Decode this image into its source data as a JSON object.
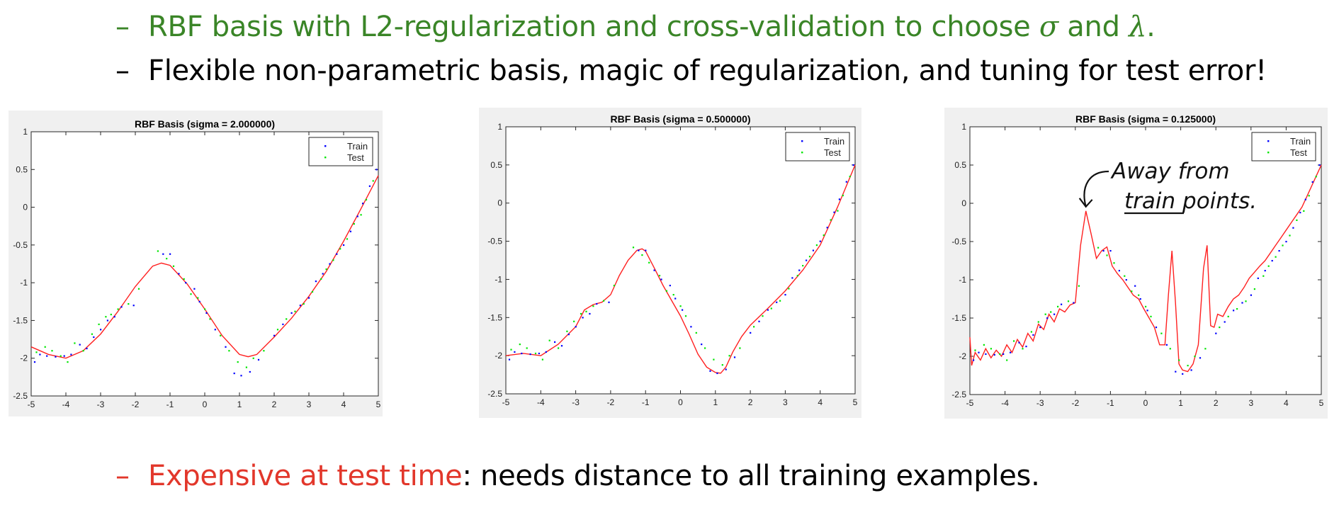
{
  "bullets": {
    "first": {
      "prefix": "RBF basis with L2-regularization and cross-validation to choose ",
      "sigma": "σ",
      "and": " and ",
      "lambda": "λ",
      "suffix": "."
    },
    "second": {
      "text": "Flexible non-parametric basis, magic of regularization, and tuning for test error!"
    },
    "third": {
      "highlight": "Expensive at test time",
      "rest": ": needs distance to all training examples."
    },
    "dash": "–"
  },
  "annotation": {
    "line1": "Away from",
    "line2_word": "train",
    "line2_rest": " points."
  },
  "colors": {
    "train": "#0000ff",
    "test": "#00e600",
    "fit": "#ff2020",
    "green_text": "#3a8527",
    "red_text": "#e2372b"
  },
  "chart_data": [
    {
      "type": "scatter",
      "title": "RBF Basis (sigma = 2.000000)",
      "xlim": [
        -5,
        5
      ],
      "ylim": [
        -2.5,
        1
      ],
      "xticks": [
        -5,
        -4,
        -3,
        -2,
        -1,
        0,
        1,
        2,
        3,
        4,
        5
      ],
      "yticks": [
        -2.5,
        -2,
        -1.5,
        -1,
        -0.5,
        0,
        0.5,
        1
      ],
      "legend": {
        "position": "top-right",
        "entries": [
          "Train",
          "Test"
        ]
      },
      "series": [
        {
          "name": "Train",
          "marker": "dot",
          "x": [
            -4.9,
            -4.75,
            -4.55,
            -4.3,
            -4.05,
            -3.85,
            -3.6,
            -3.4,
            -3.2,
            -3.0,
            -2.8,
            -2.6,
            -2.4,
            -2.05,
            -1.2,
            -1.0,
            -0.75,
            -0.55,
            -0.3,
            -0.15,
            0.05,
            0.3,
            0.6,
            0.85,
            1.05,
            1.3,
            1.55,
            2.0,
            2.25,
            2.5,
            2.75,
            3.0,
            3.2,
            3.4,
            3.6,
            3.8,
            4.0,
            4.2,
            4.4,
            4.55,
            4.75,
            4.95
          ],
          "y": [
            -2.05,
            -1.95,
            -1.97,
            -1.98,
            -1.97,
            -1.95,
            -1.82,
            -1.87,
            -1.72,
            -1.62,
            -1.5,
            -1.45,
            -1.32,
            -1.3,
            -0.62,
            -0.62,
            -0.88,
            -1.0,
            -1.08,
            -1.25,
            -1.4,
            -1.62,
            -1.85,
            -2.2,
            -2.23,
            -2.18,
            -2.02,
            -1.7,
            -1.55,
            -1.4,
            -1.3,
            -1.2,
            -0.98,
            -0.88,
            -0.75,
            -0.62,
            -0.5,
            -0.32,
            -0.12,
            0.05,
            0.28,
            0.5
          ]
        },
        {
          "name": "Test",
          "marker": "dot",
          "x": [
            -4.85,
            -4.6,
            -4.4,
            -4.15,
            -3.95,
            -3.75,
            -3.5,
            -3.25,
            -3.05,
            -2.85,
            -2.7,
            -2.5,
            -2.2,
            -1.9,
            -1.35,
            -1.1,
            -0.9,
            -0.6,
            -0.4,
            -0.2,
            0.0,
            0.15,
            0.45,
            0.7,
            0.95,
            1.2,
            1.4,
            1.7,
            2.1,
            2.35,
            2.6,
            2.85,
            3.1,
            3.35,
            3.5,
            3.7,
            3.9,
            4.1,
            4.3,
            4.5,
            4.65,
            4.85
          ],
          "y": [
            -1.92,
            -1.85,
            -1.9,
            -1.97,
            -2.05,
            -1.8,
            -1.9,
            -1.68,
            -1.55,
            -1.45,
            -1.42,
            -1.35,
            -1.28,
            -1.08,
            -0.58,
            -0.68,
            -0.78,
            -0.95,
            -1.15,
            -1.2,
            -1.35,
            -1.48,
            -1.7,
            -1.9,
            -2.05,
            -2.12,
            -2.0,
            -1.9,
            -1.62,
            -1.48,
            -1.38,
            -1.28,
            -1.12,
            -0.95,
            -0.82,
            -0.7,
            -0.55,
            -0.42,
            -0.22,
            -0.1,
            0.1,
            0.35
          ]
        }
      ],
      "fit": {
        "name": "RBF fit",
        "x": [
          -5,
          -4.5,
          -4,
          -3.5,
          -3,
          -2.5,
          -2,
          -1.5,
          -1.25,
          -1,
          -0.5,
          0,
          0.5,
          1,
          1.25,
          1.5,
          2,
          2.5,
          3,
          3.5,
          4,
          4.5,
          5
        ],
        "y": [
          -1.85,
          -1.95,
          -2.0,
          -1.9,
          -1.68,
          -1.38,
          -1.05,
          -0.78,
          -0.74,
          -0.77,
          -1.02,
          -1.35,
          -1.7,
          -1.95,
          -1.98,
          -1.95,
          -1.72,
          -1.47,
          -1.18,
          -0.85,
          -0.45,
          -0.02,
          0.42
        ]
      }
    },
    {
      "type": "scatter",
      "title": "RBF Basis (sigma = 0.500000)",
      "xlim": [
        -5,
        5
      ],
      "ylim": [
        -2.5,
        1
      ],
      "xticks": [
        -5,
        -4,
        -3,
        -2,
        -1,
        0,
        1,
        2,
        3,
        4,
        5
      ],
      "yticks": [
        -2.5,
        -2,
        -1.5,
        -1,
        -0.5,
        0,
        0.5,
        1
      ],
      "legend": {
        "position": "top-right",
        "entries": [
          "Train",
          "Test"
        ]
      },
      "series": [
        {
          "name": "Train",
          "marker": "dot",
          "x": [
            -4.9,
            -4.75,
            -4.55,
            -4.3,
            -4.05,
            -3.85,
            -3.6,
            -3.4,
            -3.2,
            -3.0,
            -2.8,
            -2.6,
            -2.4,
            -2.05,
            -1.2,
            -1.0,
            -0.75,
            -0.55,
            -0.3,
            -0.15,
            0.05,
            0.3,
            0.6,
            0.85,
            1.05,
            1.3,
            1.55,
            2.0,
            2.25,
            2.5,
            2.75,
            3.0,
            3.2,
            3.4,
            3.6,
            3.8,
            4.0,
            4.2,
            4.4,
            4.55,
            4.75,
            4.95
          ],
          "y": [
            -2.05,
            -1.95,
            -1.97,
            -1.98,
            -1.97,
            -1.95,
            -1.82,
            -1.87,
            -1.72,
            -1.62,
            -1.5,
            -1.45,
            -1.32,
            -1.3,
            -0.62,
            -0.62,
            -0.88,
            -1.0,
            -1.08,
            -1.25,
            -1.4,
            -1.62,
            -1.85,
            -2.2,
            -2.23,
            -2.18,
            -2.02,
            -1.7,
            -1.55,
            -1.4,
            -1.3,
            -1.2,
            -0.98,
            -0.88,
            -0.75,
            -0.62,
            -0.5,
            -0.32,
            -0.12,
            0.05,
            0.28,
            0.5
          ]
        },
        {
          "name": "Test",
          "marker": "dot",
          "x": [
            -4.85,
            -4.6,
            -4.4,
            -4.15,
            -3.95,
            -3.75,
            -3.5,
            -3.25,
            -3.05,
            -2.85,
            -2.7,
            -2.5,
            -2.2,
            -1.9,
            -1.35,
            -1.1,
            -0.9,
            -0.6,
            -0.4,
            -0.2,
            0.0,
            0.15,
            0.45,
            0.7,
            0.95,
            1.2,
            1.4,
            1.7,
            2.1,
            2.35,
            2.6,
            2.85,
            3.1,
            3.35,
            3.5,
            3.7,
            3.9,
            4.1,
            4.3,
            4.5,
            4.65,
            4.85
          ],
          "y": [
            -1.92,
            -1.85,
            -1.9,
            -1.97,
            -2.05,
            -1.8,
            -1.9,
            -1.68,
            -1.55,
            -1.45,
            -1.42,
            -1.35,
            -1.28,
            -1.08,
            -0.58,
            -0.68,
            -0.78,
            -0.95,
            -1.15,
            -1.2,
            -1.35,
            -1.48,
            -1.7,
            -1.9,
            -2.05,
            -2.12,
            -2.0,
            -1.9,
            -1.62,
            -1.48,
            -1.38,
            -1.28,
            -1.12,
            -0.95,
            -0.82,
            -0.7,
            -0.55,
            -0.42,
            -0.22,
            -0.1,
            0.1,
            0.35
          ]
        }
      ],
      "fit": {
        "name": "RBF fit",
        "x": [
          -5,
          -4.5,
          -4,
          -3.5,
          -3,
          -2.75,
          -2.5,
          -2.25,
          -2,
          -1.75,
          -1.5,
          -1.25,
          -1.1,
          -1,
          -0.75,
          -0.5,
          -0.25,
          0,
          0.25,
          0.5,
          0.75,
          1,
          1.15,
          1.3,
          1.5,
          1.75,
          2,
          2.5,
          3,
          3.5,
          4,
          4.5,
          5
        ],
        "y": [
          -2.0,
          -1.97,
          -2.0,
          -1.85,
          -1.62,
          -1.4,
          -1.33,
          -1.3,
          -1.2,
          -0.95,
          -0.75,
          -0.62,
          -0.6,
          -0.63,
          -0.85,
          -1.08,
          -1.28,
          -1.48,
          -1.72,
          -1.98,
          -2.15,
          -2.22,
          -2.23,
          -2.15,
          -1.95,
          -1.75,
          -1.6,
          -1.38,
          -1.15,
          -0.88,
          -0.55,
          -0.05,
          0.5
        ]
      }
    },
    {
      "type": "scatter",
      "title": "RBF Basis (sigma = 0.125000)",
      "xlim": [
        -5,
        5
      ],
      "ylim": [
        -2.5,
        1
      ],
      "xticks": [
        -5,
        -4,
        -3,
        -2,
        -1,
        0,
        1,
        2,
        3,
        4,
        5
      ],
      "yticks": [
        -2.5,
        -2,
        -1.5,
        -1,
        -0.5,
        0,
        0.5,
        1
      ],
      "legend": {
        "position": "top-right",
        "entries": [
          "Train",
          "Test"
        ]
      },
      "series": [
        {
          "name": "Train",
          "marker": "dot",
          "x": [
            -4.9,
            -4.75,
            -4.55,
            -4.3,
            -4.05,
            -3.85,
            -3.6,
            -3.4,
            -3.2,
            -3.0,
            -2.8,
            -2.6,
            -2.4,
            -2.05,
            -1.2,
            -1.0,
            -0.75,
            -0.55,
            -0.3,
            -0.15,
            0.05,
            0.3,
            0.6,
            0.85,
            1.05,
            1.3,
            1.55,
            2.0,
            2.25,
            2.5,
            2.75,
            3.0,
            3.2,
            3.4,
            3.6,
            3.8,
            4.0,
            4.2,
            4.4,
            4.55,
            4.75,
            4.95
          ],
          "y": [
            -2.05,
            -1.95,
            -1.97,
            -1.98,
            -1.97,
            -1.95,
            -1.82,
            -1.87,
            -1.72,
            -1.62,
            -1.5,
            -1.45,
            -1.32,
            -1.3,
            -0.62,
            -0.62,
            -0.88,
            -1.0,
            -1.08,
            -1.25,
            -1.4,
            -1.62,
            -1.85,
            -2.2,
            -2.23,
            -2.18,
            -2.02,
            -1.7,
            -1.55,
            -1.4,
            -1.3,
            -1.2,
            -0.98,
            -0.88,
            -0.75,
            -0.62,
            -0.5,
            -0.32,
            -0.12,
            0.05,
            0.28,
            0.5
          ]
        },
        {
          "name": "Test",
          "marker": "dot",
          "x": [
            -4.85,
            -4.6,
            -4.4,
            -4.15,
            -3.95,
            -3.75,
            -3.5,
            -3.25,
            -3.05,
            -2.85,
            -2.7,
            -2.5,
            -2.2,
            -1.9,
            -1.35,
            -1.1,
            -0.9,
            -0.6,
            -0.4,
            -0.2,
            0.0,
            0.15,
            0.45,
            0.7,
            0.95,
            1.2,
            1.4,
            1.7,
            2.1,
            2.35,
            2.6,
            2.85,
            3.1,
            3.35,
            3.5,
            3.7,
            3.9,
            4.1,
            4.3,
            4.5,
            4.65,
            4.85
          ],
          "y": [
            -1.92,
            -1.85,
            -1.9,
            -1.97,
            -2.05,
            -1.8,
            -1.9,
            -1.68,
            -1.55,
            -1.45,
            -1.42,
            -1.35,
            -1.28,
            -1.08,
            -0.58,
            -0.68,
            -0.78,
            -0.95,
            -1.15,
            -1.2,
            -1.35,
            -1.48,
            -1.7,
            -1.9,
            -2.05,
            -2.12,
            -2.0,
            -1.9,
            -1.62,
            -1.48,
            -1.38,
            -1.28,
            -1.12,
            -0.95,
            -0.82,
            -0.7,
            -0.55,
            -0.42,
            -0.22,
            -0.1,
            0.1,
            0.35
          ]
        }
      ],
      "fit": {
        "name": "RBF fit",
        "x": [
          -5,
          -4.95,
          -4.85,
          -4.7,
          -4.55,
          -4.4,
          -4.25,
          -4.1,
          -3.95,
          -3.8,
          -3.65,
          -3.5,
          -3.35,
          -3.2,
          -3.05,
          -2.9,
          -2.75,
          -2.6,
          -2.45,
          -2.3,
          -2.15,
          -2.0,
          -1.85,
          -1.7,
          -1.55,
          -1.4,
          -1.25,
          -1.1,
          -0.95,
          -0.8,
          -0.65,
          -0.5,
          -0.35,
          -0.2,
          -0.05,
          0.1,
          0.25,
          0.4,
          0.55,
          0.65,
          0.75,
          0.85,
          0.95,
          1.05,
          1.2,
          1.35,
          1.5,
          1.65,
          1.75,
          1.85,
          1.95,
          2.05,
          2.2,
          2.35,
          2.5,
          2.65,
          2.8,
          2.95,
          3.1,
          3.25,
          3.4,
          3.55,
          3.7,
          3.85,
          4.0,
          4.15,
          4.3,
          4.45,
          4.6,
          4.75,
          4.9,
          5.0
        ],
        "y": [
          -1.75,
          -2.12,
          -1.95,
          -2.05,
          -1.9,
          -2.02,
          -1.92,
          -2.0,
          -1.85,
          -1.95,
          -1.78,
          -1.88,
          -1.7,
          -1.8,
          -1.58,
          -1.65,
          -1.45,
          -1.55,
          -1.38,
          -1.42,
          -1.33,
          -1.3,
          -0.55,
          -0.1,
          -0.4,
          -0.72,
          -0.62,
          -0.57,
          -0.82,
          -0.92,
          -1.0,
          -1.1,
          -1.2,
          -1.25,
          -1.38,
          -1.5,
          -1.62,
          -1.85,
          -1.85,
          -1.2,
          -0.62,
          -1.3,
          -2.1,
          -2.18,
          -2.2,
          -2.1,
          -1.85,
          -0.85,
          -0.55,
          -1.6,
          -1.62,
          -1.45,
          -1.48,
          -1.35,
          -1.25,
          -1.2,
          -1.1,
          -0.98,
          -0.9,
          -0.82,
          -0.75,
          -0.65,
          -0.55,
          -0.45,
          -0.35,
          -0.25,
          -0.15,
          -0.05,
          0.1,
          0.25,
          0.4,
          0.5
        ]
      }
    }
  ]
}
